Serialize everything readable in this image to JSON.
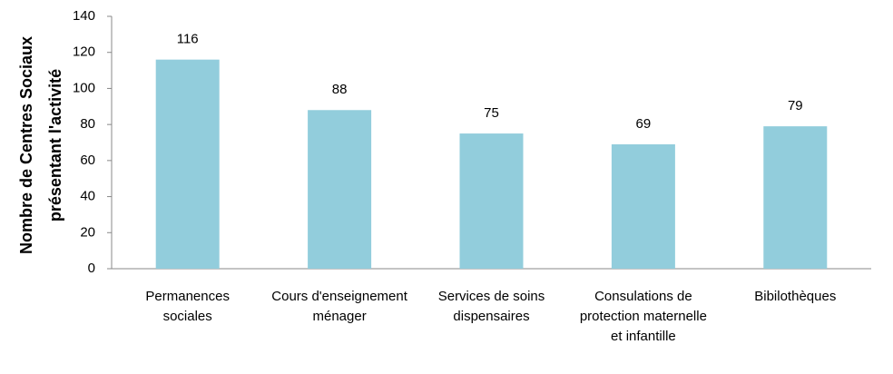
{
  "chart_data": {
    "type": "bar",
    "ylabel": [
      "Nombre de Centres Sociaux",
      "présentant l'activité"
    ],
    "categories": [
      "Permanences sociales",
      "Cours d'enseignement ménager",
      "Services de soins dispensaires",
      "Consulations de protection maternelle et infantille",
      "Bibilothèques"
    ],
    "values": [
      116,
      88,
      75,
      69,
      79
    ],
    "color": "#92cddc",
    "ylim": [
      0,
      140
    ],
    "yticks": [
      0,
      20,
      40,
      60,
      80,
      100,
      120,
      140
    ],
    "grid": false
  }
}
